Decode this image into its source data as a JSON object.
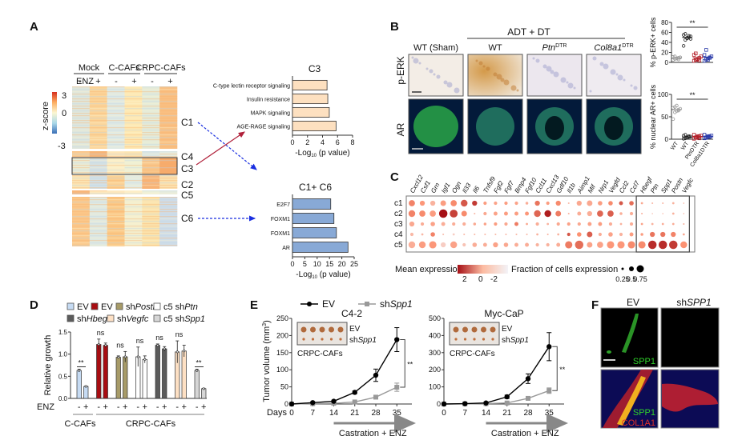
{
  "panels": {
    "A": {
      "label": "A",
      "groups": [
        "Mock",
        "C-CAFs",
        "CRPC-CAFs"
      ],
      "enz_label": "ENZ",
      "enz_signs": [
        "-",
        "+",
        "-",
        "+",
        "-",
        "+"
      ],
      "colorbar": {
        "title": "z-score",
        "ticks": [
          "3",
          "0",
          "-3"
        ],
        "low": "#3b6fb6",
        "mid": "#fbf7d2",
        "high": "#d7301f"
      },
      "clusters": [
        "C1",
        "C4",
        "C3",
        "C2",
        "C5",
        "C6"
      ],
      "c3_chart": {
        "title": "C3",
        "xlabel": "-Log10 (p value)",
        "xlabel_main": "-Log",
        "xlabel_sub": "10",
        "xlabel_rest": " (p value)",
        "xlim": [
          0,
          8
        ],
        "ticks": [
          "0",
          "2",
          "4",
          "6",
          "8"
        ],
        "bar_color": "#fde0c0",
        "terms": [
          "C-type lectin receptor signaling",
          "Insulin resistance",
          "MAPK signaling",
          "AGE-RAGE signaling"
        ],
        "values": [
          4.6,
          4.7,
          4.9,
          5.8
        ]
      },
      "c16_chart": {
        "title": "C1+ C6",
        "xlabel_main": "-Log",
        "xlabel_sub": "10",
        "xlabel_rest": " (p value)",
        "xlim": [
          0,
          25
        ],
        "ticks": [
          "0",
          "5",
          "10",
          "15",
          "20",
          "25"
        ],
        "bar_color": "#88a9d6",
        "terms": [
          "E2F7",
          "FOXM1",
          "FOXM1",
          "AR"
        ],
        "values": [
          15.5,
          16.8,
          17.8,
          22.5
        ]
      }
    },
    "B": {
      "label": "B",
      "header": "ADT + DT",
      "columns": [
        {
          "main": "WT (Sham)",
          "sup": ""
        },
        {
          "main": "WT",
          "sup": ""
        },
        {
          "main": "Ptn",
          "sup": "DTR"
        },
        {
          "main": "Col8a1",
          "sup": "DTR"
        }
      ],
      "rows": [
        "p-ERK",
        "AR"
      ],
      "scatter_top": {
        "ylabel": "% p-ERK+ cells",
        "yticks": [
          "0",
          "20",
          "40",
          "60",
          "80"
        ],
        "ylim": [
          0,
          80
        ],
        "sig": "**",
        "groups": [
          {
            "name": "WT",
            "color": "#9a9a9a",
            "mean": 9,
            "points": [
              5,
              7,
              8,
              9,
              10,
              11,
              12,
              8,
              6,
              10
            ]
          },
          {
            "name": "WT",
            "color": "#222222",
            "mean": 50,
            "points": [
              33,
              45,
              48,
              50,
              52,
              55,
              57,
              49,
              53,
              47
            ]
          },
          {
            "name": "PtnDTR",
            "color": "#b3202a",
            "mean": 9,
            "points": [
              3,
              5,
              7,
              9,
              12,
              15,
              18,
              6,
              4
            ]
          },
          {
            "name": "Col8a1DTR",
            "color": "#2a3aa8",
            "mean": 10,
            "points": [
              3,
              6,
              8,
              10,
              12,
              15,
              25,
              5,
              9
            ]
          }
        ]
      },
      "scatter_bottom": {
        "ylabel": "% nuclear AR+ cells",
        "yticks": [
          "0",
          "50",
          "100"
        ],
        "ylim": [
          0,
          100
        ],
        "sig": "**",
        "xlabels": [
          "WT",
          "WT",
          "PtnDTR",
          "Col8a1DTR"
        ],
        "groups": [
          {
            "name": "WT",
            "color": "#9a9a9a",
            "mean": 66,
            "points": [
              45,
              60,
              63,
              66,
              68,
              70,
              72,
              75,
              64
            ]
          },
          {
            "name": "WT",
            "color": "#222222",
            "mean": 5,
            "points": [
              1,
              2,
              4,
              5,
              6,
              8,
              10,
              3,
              7
            ]
          },
          {
            "name": "PtnDTR",
            "color": "#b3202a",
            "mean": 6,
            "points": [
              1,
              3,
              5,
              6,
              8,
              10,
              4,
              7,
              2
            ]
          },
          {
            "name": "Col8a1DTR",
            "color": "#2a3aa8",
            "mean": 6,
            "points": [
              2,
              4,
              5,
              6,
              8,
              10,
              3,
              7,
              5
            ]
          }
        ]
      }
    },
    "C": {
      "label": "C",
      "genes": [
        "Cxcl12",
        "Csf1",
        "Grn",
        "Igf1",
        "Ogn",
        "Il33",
        "Il6",
        "Tnfsf9",
        "Fgf2",
        "Fgf7",
        "Bmp4",
        "Fgf10",
        "Ccl11",
        "Cxcl13",
        "Gdf10",
        "Il1b",
        "Aimp1",
        "Mif",
        "Nrp1",
        "Vegfd",
        "Ccl2",
        "Ccl7",
        "Hbegf",
        "Ptn",
        "Spp1",
        "Postn",
        "Vegfc"
      ],
      "boxed_genes_start": "Hbegf",
      "clusters": [
        "c1",
        "c2",
        "c3",
        "c4",
        "c5"
      ],
      "mean_expression": [
        [
          1.0,
          0.7,
          0.2,
          0.6,
          0.9,
          1.6,
          2.0,
          0.6,
          0.5,
          0.6,
          0.5,
          0.3,
          1.2,
          0.6,
          0.9,
          0.1,
          0.4,
          0.4,
          0.6,
          0.9,
          1.6,
          1.3,
          0.4,
          0.1,
          0.1,
          0.2,
          0.3
        ],
        [
          1.0,
          0.9,
          0.6,
          2.6,
          1.9,
          0.9,
          0.1,
          0.4,
          0.5,
          0.6,
          0.6,
          0.7,
          1.4,
          2.4,
          1.1,
          0.2,
          0.3,
          0.3,
          1.4,
          1.5,
          0.3,
          0.3,
          0.2,
          0.0,
          0.1,
          0.2,
          0.2
        ],
        [
          0.4,
          0.3,
          0.5,
          0.3,
          0.3,
          0.3,
          0.4,
          0.5,
          0.6,
          0.4,
          1.1,
          0.4,
          0.3,
          0.2,
          0.4,
          0.5,
          0.4,
          0.5,
          0.6,
          0.3,
          0.2,
          0.3,
          0.5,
          0.2,
          0.3,
          0.3,
          0.2
        ],
        [
          0.1,
          0.1,
          1.0,
          0.0,
          -0.3,
          0.1,
          0.1,
          0.1,
          0.1,
          0.1,
          0.1,
          0.1,
          0.2,
          0.2,
          0.2,
          1.6,
          0.8,
          1.5,
          0.3,
          0.5,
          0.2,
          0.6,
          0.6,
          1.2,
          1.2,
          1.0,
          0.4
        ],
        [
          0.3,
          0.6,
          0.7,
          -0.3,
          0.5,
          -0.1,
          0.3,
          0.3,
          0.5,
          0.4,
          0.3,
          0.3,
          0.2,
          0.2,
          0.3,
          1.1,
          1.3,
          0.5,
          0.5,
          0.7,
          0.7,
          0.9,
          0.9,
          2.2,
          2.2,
          2.0,
          0.8
        ]
      ],
      "fraction_expression": [
        [
          0.55,
          0.45,
          0.45,
          0.5,
          0.55,
          0.6,
          0.45,
          0.3,
          0.3,
          0.3,
          0.3,
          0.25,
          0.45,
          0.3,
          0.45,
          0.15,
          0.45,
          0.5,
          0.4,
          0.4,
          0.35,
          0.4,
          0.2,
          0.15,
          0.15,
          0.2,
          0.1
        ],
        [
          0.6,
          0.55,
          0.55,
          0.75,
          0.7,
          0.5,
          0.15,
          0.3,
          0.35,
          0.35,
          0.35,
          0.35,
          0.6,
          0.6,
          0.5,
          0.15,
          0.35,
          0.45,
          0.55,
          0.55,
          0.25,
          0.3,
          0.15,
          0.05,
          0.1,
          0.2,
          0.1
        ],
        [
          0.45,
          0.3,
          0.4,
          0.35,
          0.3,
          0.3,
          0.25,
          0.25,
          0.3,
          0.3,
          0.35,
          0.2,
          0.3,
          0.2,
          0.3,
          0.3,
          0.3,
          0.35,
          0.35,
          0.3,
          0.2,
          0.3,
          0.2,
          0.2,
          0.2,
          0.2,
          0.15
        ],
        [
          0.3,
          0.2,
          0.4,
          0.15,
          0.2,
          0.15,
          0.15,
          0.15,
          0.15,
          0.15,
          0.15,
          0.15,
          0.2,
          0.15,
          0.2,
          0.3,
          0.4,
          0.5,
          0.3,
          0.4,
          0.3,
          0.35,
          0.25,
          0.45,
          0.45,
          0.45,
          0.2
        ],
        [
          0.6,
          0.6,
          0.65,
          0.45,
          0.6,
          0.3,
          0.4,
          0.35,
          0.45,
          0.4,
          0.35,
          0.35,
          0.3,
          0.3,
          0.35,
          0.65,
          0.75,
          0.5,
          0.55,
          0.65,
          0.65,
          0.65,
          0.65,
          0.75,
          0.75,
          0.75,
          0.6
        ]
      ],
      "legend_mean_title": "Mean expression",
      "legend_mean_ticks": [
        "2",
        "0",
        "-2"
      ],
      "legend_frac_title": "Fraction of cells expression",
      "legend_frac_ticks": [
        "0.25",
        "0.5",
        "0.75"
      ],
      "legend_frac_values": [
        0.25,
        0.5,
        0.75
      ]
    },
    "D": {
      "label": "D",
      "legend": [
        {
          "prefix": "",
          "italic": "",
          "text": "EV",
          "color": "#c6dbf3"
        },
        {
          "prefix": "",
          "italic": "",
          "text": "EV",
          "color": "#a80d12"
        },
        {
          "prefix": "sh",
          "italic": "Postn",
          "text": "",
          "color": "#a79b68"
        },
        {
          "prefix": "c5 sh",
          "italic": "Ptn",
          "text": "",
          "color": "#ffffff"
        },
        {
          "prefix": "sh",
          "italic": "Hbegf",
          "text": "",
          "color": "#5b5b5b"
        },
        {
          "prefix": "sh",
          "italic": "Vegfc",
          "text": "",
          "color": "#fde0c4"
        },
        {
          "prefix": "c5 sh",
          "italic": "Spp1",
          "text": "",
          "color": "#d6d6d6"
        }
      ],
      "chart_data": {
        "type": "bar",
        "ylabel": "Relative growth",
        "ylim": [
          0,
          1.5
        ],
        "yticks": [
          "0.0",
          "0.5",
          "1.0",
          "1.5"
        ],
        "xlabel": "ENZ",
        "enz_signs": [
          "-",
          "+"
        ],
        "groups": [
          {
            "name": "EV (C-CAFs)",
            "color": "#c6dbf3",
            "values": [
              0.63,
              0.27
            ],
            "errors": [
              0.03,
              0.01
            ],
            "sig": "**"
          },
          {
            "name": "EV (CRPC-CAFs)",
            "color": "#a80d12",
            "values": [
              1.22,
              1.2
            ],
            "errors": [
              0.12,
              0.05
            ],
            "sig": "ns"
          },
          {
            "name": "shPostn",
            "color": "#a79b68",
            "values": [
              0.93,
              0.94
            ],
            "errors": [
              0.03,
              0.12
            ],
            "sig": "ns"
          },
          {
            "name": "c5 shPtn",
            "color": "#ffffff",
            "values": [
              0.94,
              0.88
            ],
            "errors": [
              0.22,
              0.08
            ],
            "sig": "ns"
          },
          {
            "name": "shHbegf",
            "color": "#5b5b5b",
            "values": [
              1.2,
              1.12
            ],
            "errors": [
              0.03,
              0.05
            ],
            "sig": "ns"
          },
          {
            "name": "shVegfc",
            "color": "#fde0c4",
            "values": [
              1.05,
              1.07
            ],
            "errors": [
              0.25,
              0.13
            ],
            "sig": "ns"
          },
          {
            "name": "c5 shSpp1",
            "color": "#d6d6d6",
            "values": [
              0.63,
              0.22
            ],
            "errors": [
              0.03,
              0.01
            ],
            "sig": "**"
          }
        ],
        "group_labels": [
          "C-CAFs",
          "CRPC-CAFs"
        ]
      }
    },
    "E": {
      "label": "E",
      "legend": [
        {
          "name": "EV",
          "prefix": "",
          "italic": "",
          "color": "#000000"
        },
        {
          "name": "shSpp1",
          "prefix": "sh",
          "italic": "Spp1",
          "color": "#999999"
        }
      ],
      "ylabel": "Tumor volume (mm3)",
      "ylabel_main": "Tumor volume (mm",
      "ylabel_sup": "3",
      "ylabel_end": ")",
      "days_label": "Days",
      "arrow_label": "Castration + ENZ",
      "inset_labels": {
        "ev": "EV",
        "sh_prefix": "sh",
        "sh_italic": "Spp1",
        "caption": "CRPC-CAFs"
      },
      "chart_data": [
        {
          "type": "line",
          "title": "C4-2",
          "x": [
            0,
            7,
            14,
            21,
            28,
            35
          ],
          "xticks": [
            "0",
            "7",
            "14",
            "21",
            "28",
            "35"
          ],
          "ylim": [
            0,
            250
          ],
          "yticks": [
            "0",
            "50",
            "100",
            "150",
            "200",
            "250"
          ],
          "series": [
            {
              "name": "EV",
              "values": [
                0,
                4,
                8,
                34,
                84,
                188
              ],
              "errors": [
                1,
                2,
                3,
                4,
                18,
                35
              ]
            },
            {
              "name": "shSpp1",
              "values": [
                0,
                1,
                2,
                6,
                20,
                49
              ],
              "errors": [
                0,
                1,
                1,
                2,
                4,
                12
              ]
            }
          ],
          "sig": "**"
        },
        {
          "type": "line",
          "title": "Myc-CaP",
          "x": [
            0,
            7,
            14,
            21,
            28,
            35
          ],
          "xticks": [
            "0",
            "7",
            "14",
            "21",
            "28",
            "35"
          ],
          "ylim": [
            0,
            500
          ],
          "yticks": [
            "0",
            "100",
            "200",
            "300",
            "400",
            "500"
          ],
          "series": [
            {
              "name": "EV",
              "values": [
                0,
                2,
                6,
                42,
                148,
                335
              ],
              "errors": [
                1,
                2,
                4,
                10,
                28,
                82
              ]
            },
            {
              "name": "shSpp1",
              "values": [
                0,
                1,
                2,
                6,
                33,
                78
              ],
              "errors": [
                0,
                1,
                1,
                3,
                5,
                16
              ]
            }
          ],
          "sig": "**"
        }
      ]
    },
    "F": {
      "label": "F",
      "columns": [
        {
          "prefix": "",
          "italic": "EV_PLAIN",
          "text": "EV"
        },
        {
          "prefix": "sh",
          "italic": "SPP1",
          "text": ""
        }
      ],
      "top_label": "SPP1",
      "bottom_labels": [
        "SPP1",
        "COL1A1"
      ]
    }
  }
}
